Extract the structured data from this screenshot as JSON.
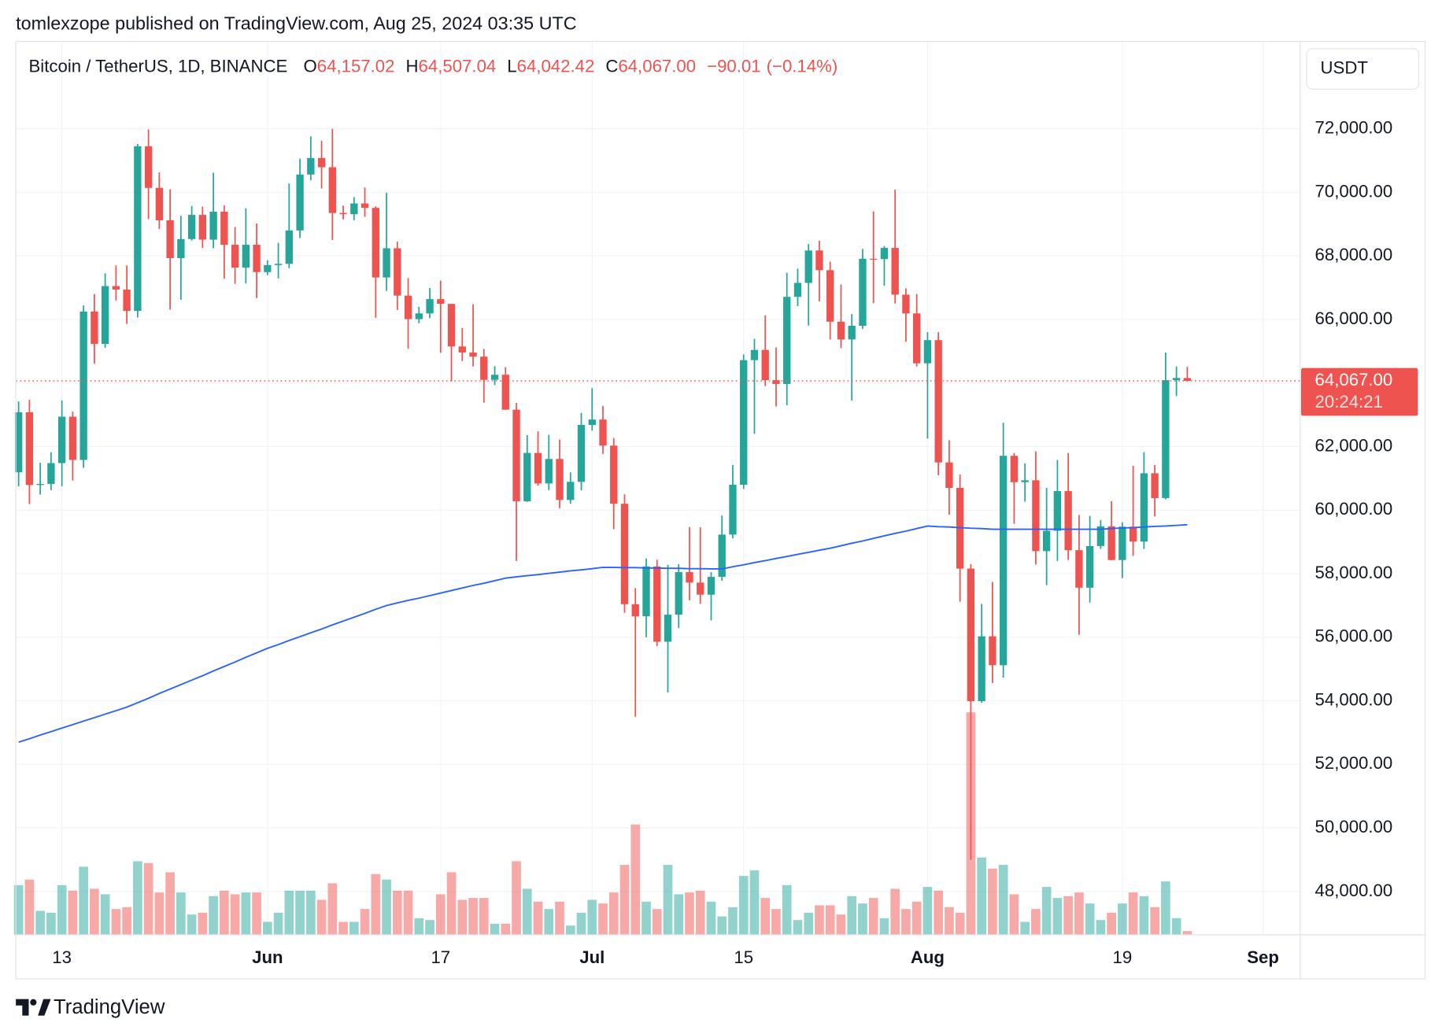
{
  "header": {
    "publisher": "tomlexzope published on TradingView.com, Aug 25, 2024 03:35 UTC"
  },
  "footer": {
    "brand": "TradingView"
  },
  "chart_data": {
    "type": "candlestick",
    "title": "Bitcoin / TetherUS, 1D, BINANCE",
    "legend": [
      {
        "key": "O",
        "value": 64157.02,
        "label": "64,157.02"
      },
      {
        "key": "H",
        "value": 64507.04,
        "label": "64,507.04"
      },
      {
        "key": "L",
        "value": 64042.42,
        "label": "64,042.42"
      },
      {
        "key": "C",
        "value": 64067.0,
        "label": "64,067.00"
      }
    ],
    "change": {
      "value": -90.01,
      "label": "−90.01"
    },
    "change_pct": {
      "value": -0.14,
      "label": "(−0.14%)"
    },
    "currency": "USDT",
    "last_price": {
      "value": 64067.0,
      "label": "64,067.00"
    },
    "countdown": "20:24:21",
    "up_color": "#26a69a",
    "down_color": "#ef5350",
    "grid": true,
    "categories": [
      null,
      null,
      null,
      null,
      "13",
      null,
      null,
      null,
      null,
      null,
      null,
      null,
      null,
      null,
      null,
      null,
      null,
      null,
      null,
      null,
      null,
      null,
      null,
      "Jun",
      null,
      null,
      null,
      null,
      null,
      null,
      null,
      null,
      null,
      null,
      null,
      null,
      null,
      null,
      null,
      "17",
      null,
      null,
      null,
      null,
      null,
      null,
      null,
      null,
      null,
      null,
      null,
      null,
      null,
      "Jul",
      null,
      null,
      null,
      null,
      null,
      null,
      null,
      null,
      null,
      null,
      null,
      null,
      null,
      "15",
      null,
      null,
      null,
      null,
      null,
      null,
      null,
      null,
      null,
      null,
      null,
      null,
      null,
      null,
      null,
      null,
      "Aug",
      null,
      null,
      null,
      null,
      null,
      null,
      null,
      null,
      null,
      null,
      null,
      null,
      null,
      null,
      null,
      null,
      null,
      "19",
      null,
      null,
      null,
      null,
      null,
      null,
      null,
      null,
      null,
      null,
      null,
      null,
      "Sep"
    ],
    "open": [
      61190,
      63080,
      60790,
      60825,
      61480,
      62940,
      61580,
      66250,
      65230,
      67050,
      66940,
      66270,
      71450,
      70140,
      69120,
      67930,
      68530,
      69290,
      68510,
      69390,
      68350,
      67630,
      68350,
      67490,
      67710,
      67750,
      68800,
      70560,
      71080,
      70790,
      69350,
      69310,
      69650,
      69510,
      67320,
      68240,
      66750,
      66010,
      66190,
      66640,
      66490,
      65150,
      64960,
      64830,
      64100,
      64260,
      63160,
      60280,
      61800,
      60840,
      61610,
      60320,
      60890,
      62680,
      62850,
      62030,
      60200,
      57040,
      56660,
      58230,
      55860,
      56710,
      58050,
      57720,
      57340,
      57900,
      59230,
      60800,
      64720,
      65040,
      64090,
      63970,
      66710,
      67150,
      68170,
      67550,
      65930,
      65370,
      65800,
      67910,
      67900,
      68250,
      66780,
      66190,
      64620,
      65350,
      61500,
      60700,
      58160,
      53990,
      56030,
      55120,
      61710,
      60880,
      60940,
      58710,
      59350,
      60600,
      58740,
      57560,
      58870,
      59490,
      58430,
      59480,
      59010,
      61160,
      60380,
      64090,
      64157.02,
      null,
      null,
      null,
      null,
      null,
      null,
      null
    ],
    "high": [
      63420,
      63470,
      61490,
      61820,
      63450,
      63100,
      66440,
      66800,
      67450,
      67700,
      67700,
      71520,
      71980,
      70630,
      70090,
      69260,
      69570,
      69550,
      70620,
      69590,
      68910,
      69500,
      69020,
      67860,
      68410,
      70280,
      71060,
      71760,
      71620,
      72000,
      69580,
      69850,
      70150,
      69560,
      69990,
      68450,
      67300,
      66400,
      66990,
      67220,
      66490,
      65730,
      66480,
      65070,
      64530,
      64500,
      63370,
      62360,
      62480,
      62370,
      62220,
      61190,
      63060,
      63840,
      63280,
      62270,
      60500,
      57550,
      58480,
      58440,
      58280,
      58300,
      59470,
      59460,
      58050,
      59830,
      61420,
      64900,
      65390,
      66130,
      65120,
      67470,
      67600,
      68370,
      68480,
      67820,
      67100,
      66170,
      68220,
      69400,
      68310,
      70080,
      66980,
      66800,
      65600,
      65600,
      62200,
      61120,
      58300,
      57050,
      57740,
      62750,
      61800,
      61470,
      61850,
      60700,
      61580,
      61800,
      59850,
      59820,
      59690,
      60280,
      59620,
      61400,
      61820,
      61420,
      64960,
      64520,
      64507.04,
      null,
      null,
      null,
      null,
      null,
      null,
      null
    ],
    "low": [
      60750,
      60190,
      60490,
      60630,
      60750,
      60930,
      61330,
      64610,
      65110,
      66600,
      65860,
      66060,
      69160,
      68850,
      66310,
      66620,
      68480,
      68250,
      68240,
      67280,
      67120,
      67130,
      66670,
      67390,
      67290,
      67610,
      68560,
      70380,
      70120,
      68500,
      69150,
      69120,
      69230,
      66050,
      66900,
      66300,
      65080,
      65880,
      66040,
      64950,
      64060,
      64690,
      64520,
      63380,
      63940,
      63160,
      58400,
      60260,
      60770,
      60630,
      60060,
      60200,
      60620,
      62500,
      61770,
      59400,
      56770,
      53500,
      56000,
      55720,
      54260,
      56290,
      57160,
      57050,
      56530,
      57780,
      59110,
      60670,
      62400,
      63900,
      63260,
      63300,
      66420,
      65810,
      66570,
      65370,
      65100,
      63450,
      65700,
      66510,
      67060,
      66500,
      65300,
      64520,
      62250,
      61100,
      59860,
      57120,
      49000,
      53940,
      54560,
      54730,
      59570,
      60270,
      58290,
      57640,
      58400,
      58430,
      56080,
      57090,
      58780,
      58420,
      57860,
      58560,
      58780,
      59800,
      60340,
      63590,
      64042.42,
      null,
      null,
      null,
      null,
      null,
      null,
      null
    ],
    "close": [
      63080,
      60790,
      60825,
      61480,
      62940,
      61580,
      66250,
      65230,
      67050,
      66940,
      66270,
      71450,
      70140,
      69120,
      67930,
      68530,
      69290,
      68510,
      69390,
      68350,
      67630,
      68350,
      67490,
      67710,
      67750,
      68800,
      70560,
      71080,
      70790,
      69350,
      69310,
      69650,
      69510,
      67320,
      68240,
      66750,
      66010,
      66190,
      66640,
      66490,
      65150,
      64960,
      64830,
      64100,
      64260,
      63160,
      60280,
      61800,
      60840,
      61610,
      60320,
      60890,
      62680,
      62850,
      62030,
      60200,
      57040,
      56660,
      58230,
      55860,
      56710,
      58050,
      57720,
      57340,
      57900,
      59230,
      60800,
      64720,
      65040,
      64090,
      63970,
      66710,
      67150,
      68170,
      67550,
      65930,
      65370,
      65800,
      67910,
      67900,
      68250,
      66780,
      66190,
      64620,
      65350,
      61500,
      60700,
      58160,
      53990,
      56030,
      55120,
      61710,
      60880,
      60940,
      58710,
      59350,
      60600,
      58740,
      57560,
      58870,
      59490,
      58430,
      59480,
      59010,
      61160,
      60380,
      64090,
      64160,
      64067.0,
      null,
      null,
      null,
      null,
      null,
      null,
      null
    ],
    "volume": [
      27000,
      30000,
      13000,
      12000,
      27000,
      24000,
      37000,
      25000,
      22000,
      14000,
      15000,
      40000,
      39000,
      23000,
      34000,
      23000,
      11000,
      12000,
      21000,
      24000,
      22000,
      23000,
      23000,
      7000,
      12000,
      24000,
      24000,
      24000,
      19000,
      28000,
      7000,
      7000,
      14000,
      33000,
      30000,
      24000,
      24000,
      9000,
      8000,
      22000,
      34000,
      19000,
      20000,
      20000,
      6000,
      6000,
      40000,
      25000,
      18000,
      14000,
      18000,
      5000,
      12000,
      19000,
      17000,
      23000,
      38000,
      60000,
      18000,
      14000,
      38000,
      22000,
      23000,
      24000,
      18000,
      10000,
      15000,
      32000,
      35000,
      20000,
      14000,
      27000,
      8000,
      12000,
      16000,
      16000,
      11000,
      21000,
      17000,
      20000,
      9000,
      25000,
      14000,
      18000,
      26000,
      24000,
      15000,
      12000,
      121000,
      42000,
      36000,
      38000,
      22000,
      7000,
      14000,
      26000,
      20000,
      21000,
      23000,
      17000,
      8000,
      12000,
      17000,
      23000,
      21000,
      15000,
      29000,
      9000,
      2000,
      null,
      null,
      null,
      null,
      null,
      null,
      null
    ],
    "moving_average": {
      "color": "#2962ff",
      "values": [
        52700,
        52810,
        52920,
        53030,
        53140,
        53250,
        53360,
        53470,
        53580,
        53690,
        53800,
        53940,
        54080,
        54230,
        54370,
        54510,
        54650,
        54790,
        54940,
        55080,
        55220,
        55370,
        55510,
        55650,
        55770,
        55900,
        56020,
        56140,
        56260,
        56390,
        56510,
        56630,
        56750,
        56880,
        57000,
        57080,
        57160,
        57230,
        57310,
        57390,
        57470,
        57550,
        57630,
        57700,
        57780,
        57860,
        57900,
        57940,
        57970,
        58010,
        58050,
        58090,
        58120,
        58160,
        58200,
        58200,
        58190,
        58190,
        58180,
        58180,
        58170,
        58170,
        58160,
        58160,
        58150,
        58150,
        58220,
        58280,
        58350,
        58410,
        58480,
        58540,
        58610,
        58670,
        58740,
        58800,
        58880,
        58960,
        59030,
        59110,
        59190,
        59270,
        59340,
        59420,
        59500,
        59480,
        59470,
        59450,
        59430,
        59420,
        59400,
        59400,
        59400,
        59400,
        59400,
        59400,
        59400,
        59400,
        59400,
        59400,
        59400,
        59420,
        59440,
        59450,
        59470,
        59490,
        59500,
        59520,
        59540,
        null,
        null,
        null,
        null,
        null,
        null,
        null
      ]
    },
    "ylim": [
      46640,
      74750
    ],
    "yticks": [
      {
        "value": 48000,
        "label": "48,000.00"
      },
      {
        "value": 50000,
        "label": "50,000.00"
      },
      {
        "value": 52000,
        "label": "52,000.00"
      },
      {
        "value": 54000,
        "label": "54,000.00"
      },
      {
        "value": 56000,
        "label": "56,000.00"
      },
      {
        "value": 58000,
        "label": "58,000.00"
      },
      {
        "value": 60000,
        "label": "60,000.00"
      },
      {
        "value": 62000,
        "label": "62,000.00"
      },
      {
        "value": 64000,
        "label": "64,000.00"
      },
      {
        "value": 66000,
        "label": "66,000.00"
      },
      {
        "value": 68000,
        "label": "68,000.00"
      },
      {
        "value": 70000,
        "label": "70,000.00"
      },
      {
        "value": 72000,
        "label": "72,000.00"
      }
    ]
  }
}
